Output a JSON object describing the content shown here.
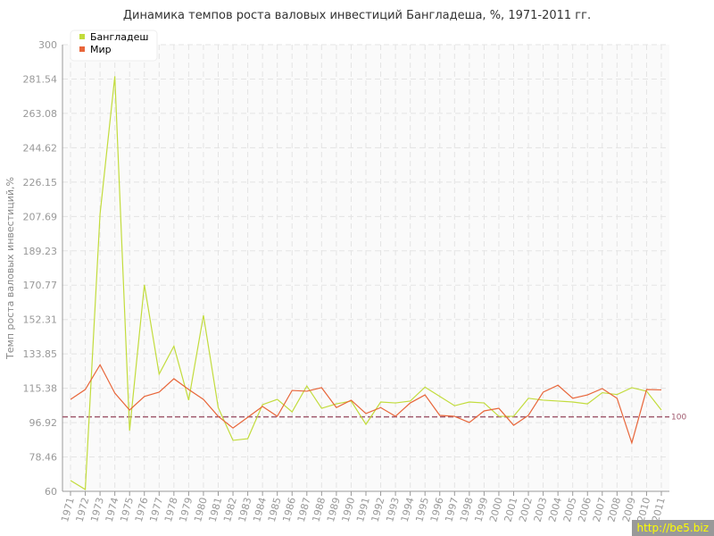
{
  "chart_data": {
    "type": "line",
    "title": "Динамика темпов роста валовых инвестиций Бангладеша, %, 1971-2011 гг.",
    "xlabel": "",
    "ylabel": "Темп роста валовых инвестиций,%",
    "ylim": [
      60,
      300
    ],
    "yticks": [
      "60",
      "78.46",
      "96.92",
      "115.38",
      "133.85",
      "152.31",
      "170.77",
      "189.23",
      "207.69",
      "226.15",
      "244.62",
      "263.08",
      "281.54",
      "300"
    ],
    "x": [
      1971,
      1972,
      1973,
      1974,
      1975,
      1976,
      1977,
      1978,
      1979,
      1980,
      1981,
      1982,
      1983,
      1984,
      1985,
      1986,
      1987,
      1988,
      1989,
      1990,
      1991,
      1992,
      1993,
      1994,
      1995,
      1996,
      1997,
      1998,
      1999,
      2000,
      2001,
      2002,
      2003,
      2004,
      2005,
      2006,
      2007,
      2008,
      2009,
      2010,
      2011
    ],
    "grid": true,
    "legend": "top-left",
    "reference_line": {
      "value": 100,
      "label": "100",
      "color": "#a05a6e"
    },
    "series": [
      {
        "name": "Бангладеш",
        "color": "#c2dc3c",
        "values": [
          65.8,
          61,
          209,
          283,
          92.6,
          171,
          123,
          138,
          109,
          154.6,
          105,
          87.4,
          88.3,
          106.6,
          109.4,
          102.7,
          116.6,
          104.6,
          107,
          108.5,
          96,
          108,
          107.5,
          108.5,
          116,
          111,
          106,
          108,
          107.5,
          100.3,
          100.3,
          110,
          109,
          108.5,
          108,
          107,
          113,
          112,
          115.7,
          113.8,
          103.7
        ]
      },
      {
        "name": "Мир",
        "color": "#e8663a",
        "values": [
          109.4,
          114.7,
          128,
          112.8,
          103.7,
          111,
          113.3,
          120.5,
          114.7,
          109.4,
          100.3,
          94,
          99.8,
          105.6,
          100.3,
          114.2,
          113.8,
          115.7,
          105,
          109,
          101.8,
          105,
          100.3,
          107.5,
          111.8,
          100.8,
          100.3,
          97,
          103.2,
          104.6,
          95.5,
          100.8,
          113.3,
          117,
          110,
          111.8,
          115.2,
          110,
          86,
          114.7,
          114.5
        ]
      }
    ]
  },
  "watermark": "http://be5.biz"
}
